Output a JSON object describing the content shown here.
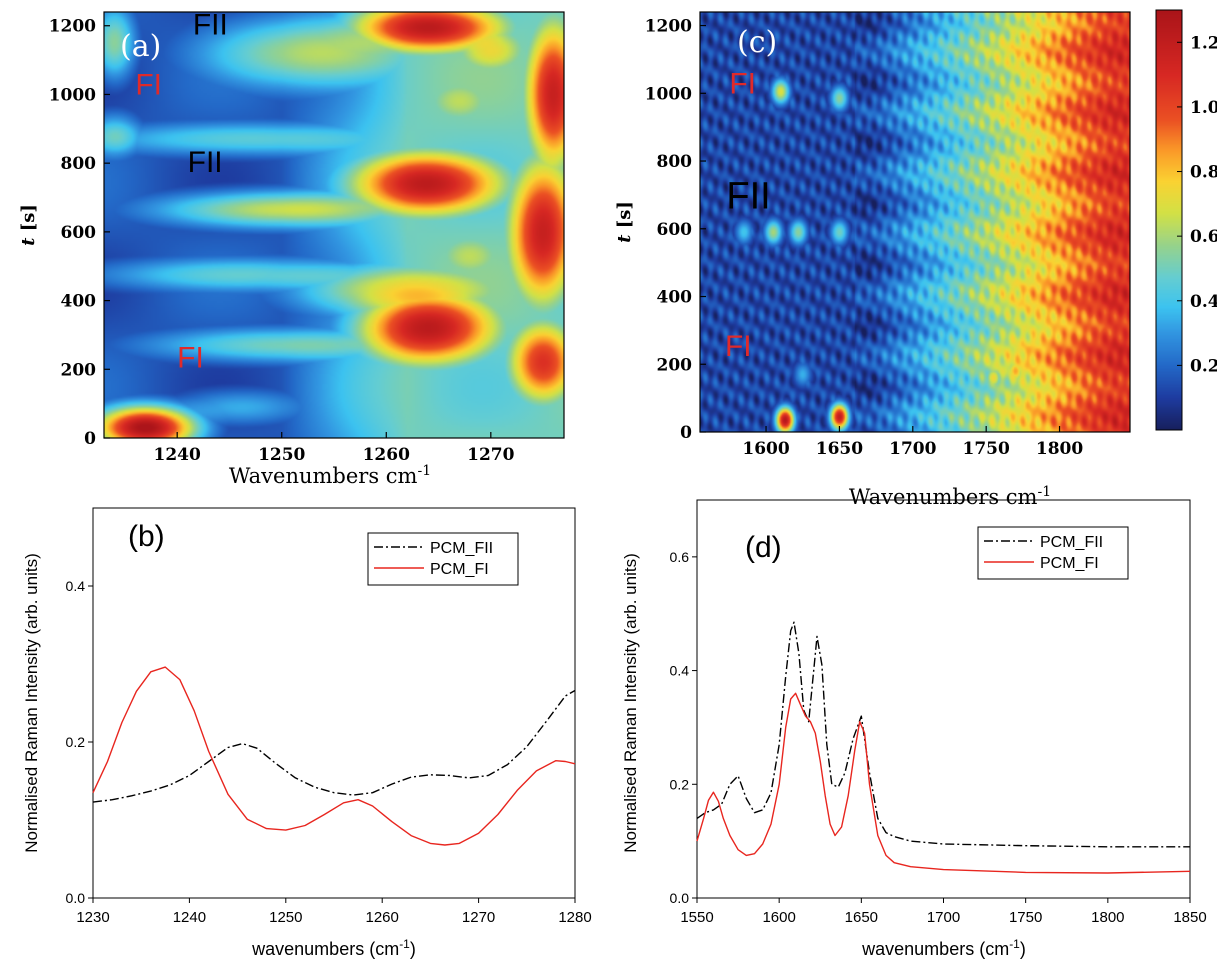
{
  "chart_data": [
    {
      "panel": "(a)",
      "type": "heatmap",
      "xlabel": "Wavenumbers cm",
      "xlabel_sup": "-1",
      "ylabel": "t [s]",
      "xlim": [
        1233,
        1277
      ],
      "ylim": [
        0,
        1240
      ],
      "xticks": [
        1240,
        1250,
        1260,
        1270
      ],
      "yticks": [
        0,
        200,
        400,
        600,
        800,
        1000,
        1200
      ],
      "annotations": [
        {
          "text": "FI",
          "x": 1236,
          "y": 1000,
          "color": "#e02a2a"
        },
        {
          "text": "FII",
          "x": 1241.5,
          "y": 1175,
          "color": "#000000"
        },
        {
          "text": "FII",
          "x": 1241,
          "y": 775,
          "color": "#000000"
        },
        {
          "text": "FI",
          "x": 1240,
          "y": 205,
          "color": "#e02a2a"
        }
      ],
      "blobs": [
        {
          "x": 1237,
          "y": 30,
          "sx": 3.5,
          "sy": 45,
          "v": 1.25
        },
        {
          "x": 1264,
          "y": 320,
          "sx": 5,
          "sy": 80,
          "v": 1.05
        },
        {
          "x": 1262,
          "y": 430,
          "sx": 8,
          "sy": 60,
          "v": 0.6
        },
        {
          "x": 1264,
          "y": 740,
          "sx": 5.5,
          "sy": 70,
          "v": 1.05
        },
        {
          "x": 1262,
          "y": 820,
          "sx": 3.5,
          "sy": 40,
          "v": 0.35
        },
        {
          "x": 1264,
          "y": 1195,
          "sx": 5.5,
          "sy": 55,
          "v": 1.05
        },
        {
          "x": 1275,
          "y": 600,
          "sx": 2.5,
          "sy": 160,
          "v": 1.0
        },
        {
          "x": 1276,
          "y": 1000,
          "sx": 2,
          "sy": 160,
          "v": 1.0
        },
        {
          "x": 1275,
          "y": 220,
          "sx": 2.5,
          "sy": 90,
          "v": 0.9
        },
        {
          "x": 1270,
          "y": 1130,
          "sx": 3,
          "sy": 60,
          "v": 0.55
        },
        {
          "x": 1253,
          "y": 1120,
          "sx": 8,
          "sy": 80,
          "v": 0.55
        },
        {
          "x": 1250,
          "y": 665,
          "sx": 9,
          "sy": 40,
          "v": 0.6
        },
        {
          "x": 1247,
          "y": 870,
          "sx": 12,
          "sy": 38,
          "v": 0.4
        },
        {
          "x": 1247,
          "y": 475,
          "sx": 12,
          "sy": 38,
          "v": 0.4
        },
        {
          "x": 1250,
          "y": 270,
          "sx": 10,
          "sy": 38,
          "v": 0.45
        },
        {
          "x": 1246,
          "y": 90,
          "sx": 5,
          "sy": 40,
          "v": 0.3
        },
        {
          "x": 1234,
          "y": 1150,
          "sx": 1.5,
          "sy": 80,
          "v": 0.5
        },
        {
          "x": 1234,
          "y": 880,
          "sx": 2,
          "sy": 50,
          "v": 0.4
        },
        {
          "x": 1267,
          "y": 980,
          "sx": 3,
          "sy": 60,
          "v": 0.45
        },
        {
          "x": 1268,
          "y": 530,
          "sx": 3,
          "sy": 60,
          "v": 0.45
        }
      ]
    },
    {
      "panel": "(c)",
      "type": "heatmap",
      "xlabel": "Wavenumbers cm",
      "xlabel_sup": "-1",
      "ylabel": "t [s]",
      "xlim": [
        1555,
        1848
      ],
      "ylim": [
        0,
        1240
      ],
      "xticks": [
        1600,
        1650,
        1700,
        1750,
        1800
      ],
      "yticks": [
        0,
        200,
        400,
        600,
        800,
        1000,
        1200
      ],
      "colorbar": {
        "ticks": [
          0.2,
          0.4,
          0.6,
          0.8,
          1.0,
          1.2
        ],
        "tick_labels": [
          "0.2",
          "0.4",
          "0.6",
          "0.8",
          "1.0",
          "1.2"
        ],
        "range": [
          0,
          1.3
        ]
      },
      "annotations": [
        {
          "text": "FI",
          "x": 1575,
          "y": 1000,
          "color": "#e02a2a"
        },
        {
          "text": "FII",
          "x": 1573,
          "y": 660,
          "color": "#000000"
        },
        {
          "text": "FI",
          "x": 1572,
          "y": 225,
          "color": "#e02a2a"
        }
      ],
      "spots": [
        {
          "x": 1613,
          "y": 35,
          "v": 1.25
        },
        {
          "x": 1650,
          "y": 45,
          "v": 1.2
        },
        {
          "x": 1610,
          "y": 1005,
          "v": 0.7
        },
        {
          "x": 1650,
          "y": 985,
          "v": 0.55
        },
        {
          "x": 1605,
          "y": 590,
          "v": 0.6
        },
        {
          "x": 1622,
          "y": 590,
          "v": 0.55
        },
        {
          "x": 1585,
          "y": 590,
          "v": 0.4
        },
        {
          "x": 1650,
          "y": 590,
          "v": 0.5
        },
        {
          "x": 1625,
          "y": 170,
          "v": 0.35
        },
        {
          "x": 1755,
          "y": 160,
          "v": 0.75
        },
        {
          "x": 1770,
          "y": 180,
          "v": 0.85
        }
      ]
    },
    {
      "panel": "(b)",
      "type": "line",
      "xlabel": "wavenumbers (cm",
      "xlabel_sup": "-1",
      "xlabel_end": ")",
      "ylabel": "Normalised Raman Intensity (arb. units)",
      "xlim": [
        1230,
        1280
      ],
      "ylim": [
        0,
        0.5
      ],
      "xticks": [
        1230,
        1240,
        1250,
        1260,
        1270,
        1280
      ],
      "yticks": [
        0.0,
        0.2,
        0.4
      ],
      "tick_labels_y": [
        "0.0",
        "0.2",
        "0.4"
      ],
      "legend": "top-right",
      "series": [
        {
          "name": "PCM_FII",
          "style": "dashdot",
          "color": "#000000",
          "x": [
            1230,
            1232,
            1234,
            1236,
            1238,
            1240,
            1242,
            1244,
            1245.5,
            1247,
            1249,
            1251,
            1253,
            1255,
            1257,
            1259,
            1261,
            1263,
            1265,
            1267,
            1269,
            1271,
            1273,
            1275,
            1277,
            1279,
            1280
          ],
          "y": [
            0.123,
            0.126,
            0.131,
            0.137,
            0.145,
            0.157,
            0.175,
            0.193,
            0.198,
            0.192,
            0.172,
            0.154,
            0.142,
            0.135,
            0.132,
            0.135,
            0.146,
            0.155,
            0.158,
            0.157,
            0.154,
            0.157,
            0.171,
            0.194,
            0.226,
            0.259,
            0.266
          ]
        },
        {
          "name": "PCM_FI",
          "style": "solid",
          "color": "#e8261f",
          "x": [
            1230,
            1231.5,
            1233,
            1234.5,
            1236,
            1237.5,
            1239,
            1240.5,
            1242,
            1244,
            1246,
            1248,
            1250,
            1252,
            1254,
            1256,
            1257.5,
            1259,
            1261,
            1263,
            1265,
            1266.5,
            1268,
            1270,
            1272,
            1274,
            1276,
            1278,
            1279,
            1280
          ],
          "y": [
            0.135,
            0.175,
            0.225,
            0.265,
            0.29,
            0.296,
            0.28,
            0.24,
            0.188,
            0.133,
            0.101,
            0.089,
            0.087,
            0.093,
            0.107,
            0.122,
            0.126,
            0.118,
            0.098,
            0.08,
            0.07,
            0.068,
            0.07,
            0.083,
            0.107,
            0.138,
            0.163,
            0.176,
            0.175,
            0.172
          ]
        }
      ]
    },
    {
      "panel": "(d)",
      "type": "line",
      "xlabel": "wavenumbers (cm",
      "xlabel_sup": "-1",
      "xlabel_end": ")",
      "ylabel": "Normalised Raman Intensity (arb. units)",
      "xlim": [
        1550,
        1850
      ],
      "ylim": [
        0,
        0.7
      ],
      "xticks": [
        1550,
        1600,
        1650,
        1700,
        1750,
        1800,
        1850
      ],
      "yticks": [
        0.0,
        0.2,
        0.4,
        0.6
      ],
      "tick_labels_y": [
        "0.0",
        "0.2",
        "0.4",
        "0.6"
      ],
      "legend": "top-right",
      "series": [
        {
          "name": "PCM_FII",
          "style": "dashdot",
          "color": "#000000",
          "x": [
            1550,
            1555,
            1560,
            1565,
            1570,
            1575,
            1580,
            1585,
            1590,
            1595,
            1600,
            1604,
            1607,
            1609,
            1612,
            1615,
            1618,
            1621,
            1623,
            1626,
            1629,
            1632,
            1636,
            1640,
            1645,
            1650,
            1655,
            1660,
            1665,
            1670,
            1680,
            1700,
            1750,
            1800,
            1850
          ],
          "y": [
            0.14,
            0.15,
            0.155,
            0.165,
            0.2,
            0.215,
            0.175,
            0.15,
            0.155,
            0.185,
            0.27,
            0.39,
            0.47,
            0.485,
            0.43,
            0.33,
            0.31,
            0.4,
            0.46,
            0.41,
            0.27,
            0.2,
            0.195,
            0.22,
            0.28,
            0.32,
            0.22,
            0.14,
            0.115,
            0.108,
            0.1,
            0.095,
            0.092,
            0.09,
            0.09
          ]
        },
        {
          "name": "PCM_FI",
          "style": "solid",
          "color": "#e8261f",
          "x": [
            1550,
            1554,
            1557,
            1560,
            1563,
            1566,
            1570,
            1575,
            1580,
            1585,
            1590,
            1595,
            1600,
            1604,
            1607,
            1610,
            1613,
            1616,
            1619,
            1622,
            1625,
            1628,
            1631,
            1634,
            1638,
            1642,
            1646,
            1649,
            1652,
            1655,
            1660,
            1665,
            1670,
            1680,
            1700,
            1750,
            1800,
            1850
          ],
          "y": [
            0.1,
            0.14,
            0.172,
            0.186,
            0.17,
            0.14,
            0.11,
            0.085,
            0.075,
            0.078,
            0.095,
            0.13,
            0.2,
            0.3,
            0.35,
            0.36,
            0.34,
            0.32,
            0.31,
            0.29,
            0.24,
            0.18,
            0.13,
            0.11,
            0.125,
            0.18,
            0.26,
            0.31,
            0.29,
            0.2,
            0.11,
            0.075,
            0.062,
            0.055,
            0.05,
            0.045,
            0.044,
            0.047
          ]
        }
      ]
    }
  ]
}
